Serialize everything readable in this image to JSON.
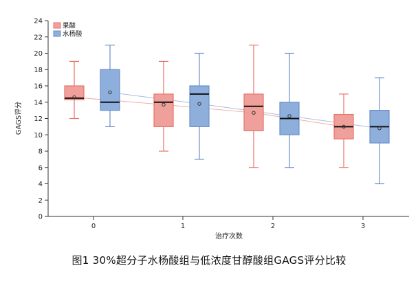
{
  "caption": "图1   30%超分子水杨酸组与低浓度甘醇酸组GAGS评分比较",
  "chart_data": {
    "type": "box",
    "xlabel": "治疗次数",
    "ylabel": "GAGS评分",
    "categories": [
      "0",
      "1",
      "2",
      "3"
    ],
    "ylim": [
      0,
      24
    ],
    "yticks": [
      0,
      2,
      4,
      6,
      8,
      10,
      12,
      14,
      16,
      18,
      20,
      22,
      24
    ],
    "legend_position": "top-left",
    "series": [
      {
        "name": "果酸",
        "color": "#e8726b",
        "fill": "#f0a09a",
        "boxes": [
          {
            "min": 12,
            "q1": 14.3,
            "median": 14.5,
            "q3": 16,
            "max": 19,
            "mean": 14.6
          },
          {
            "min": 8,
            "q1": 11,
            "median": 14,
            "q3": 15,
            "max": 19,
            "mean": 13.7
          },
          {
            "min": 6,
            "q1": 10.5,
            "median": 13.5,
            "q3": 15,
            "max": 21,
            "mean": 12.7
          },
          {
            "min": 6,
            "q1": 9.5,
            "median": 11,
            "q3": 12.5,
            "max": 15,
            "mean": 11
          }
        ]
      },
      {
        "name": "水杨酸",
        "color": "#6a8fc9",
        "fill": "#8eaedb",
        "boxes": [
          {
            "min": 11,
            "q1": 13,
            "median": 14,
            "q3": 18,
            "max": 21,
            "mean": 15.2
          },
          {
            "min": 7,
            "q1": 11,
            "median": 15,
            "q3": 16,
            "max": 20,
            "mean": 13.8
          },
          {
            "min": 6,
            "q1": 10,
            "median": 12,
            "q3": 14,
            "max": 20,
            "mean": 12.3
          },
          {
            "min": 4,
            "q1": 9,
            "median": 11,
            "q3": 13,
            "max": 17,
            "mean": 10.8
          }
        ]
      }
    ]
  }
}
